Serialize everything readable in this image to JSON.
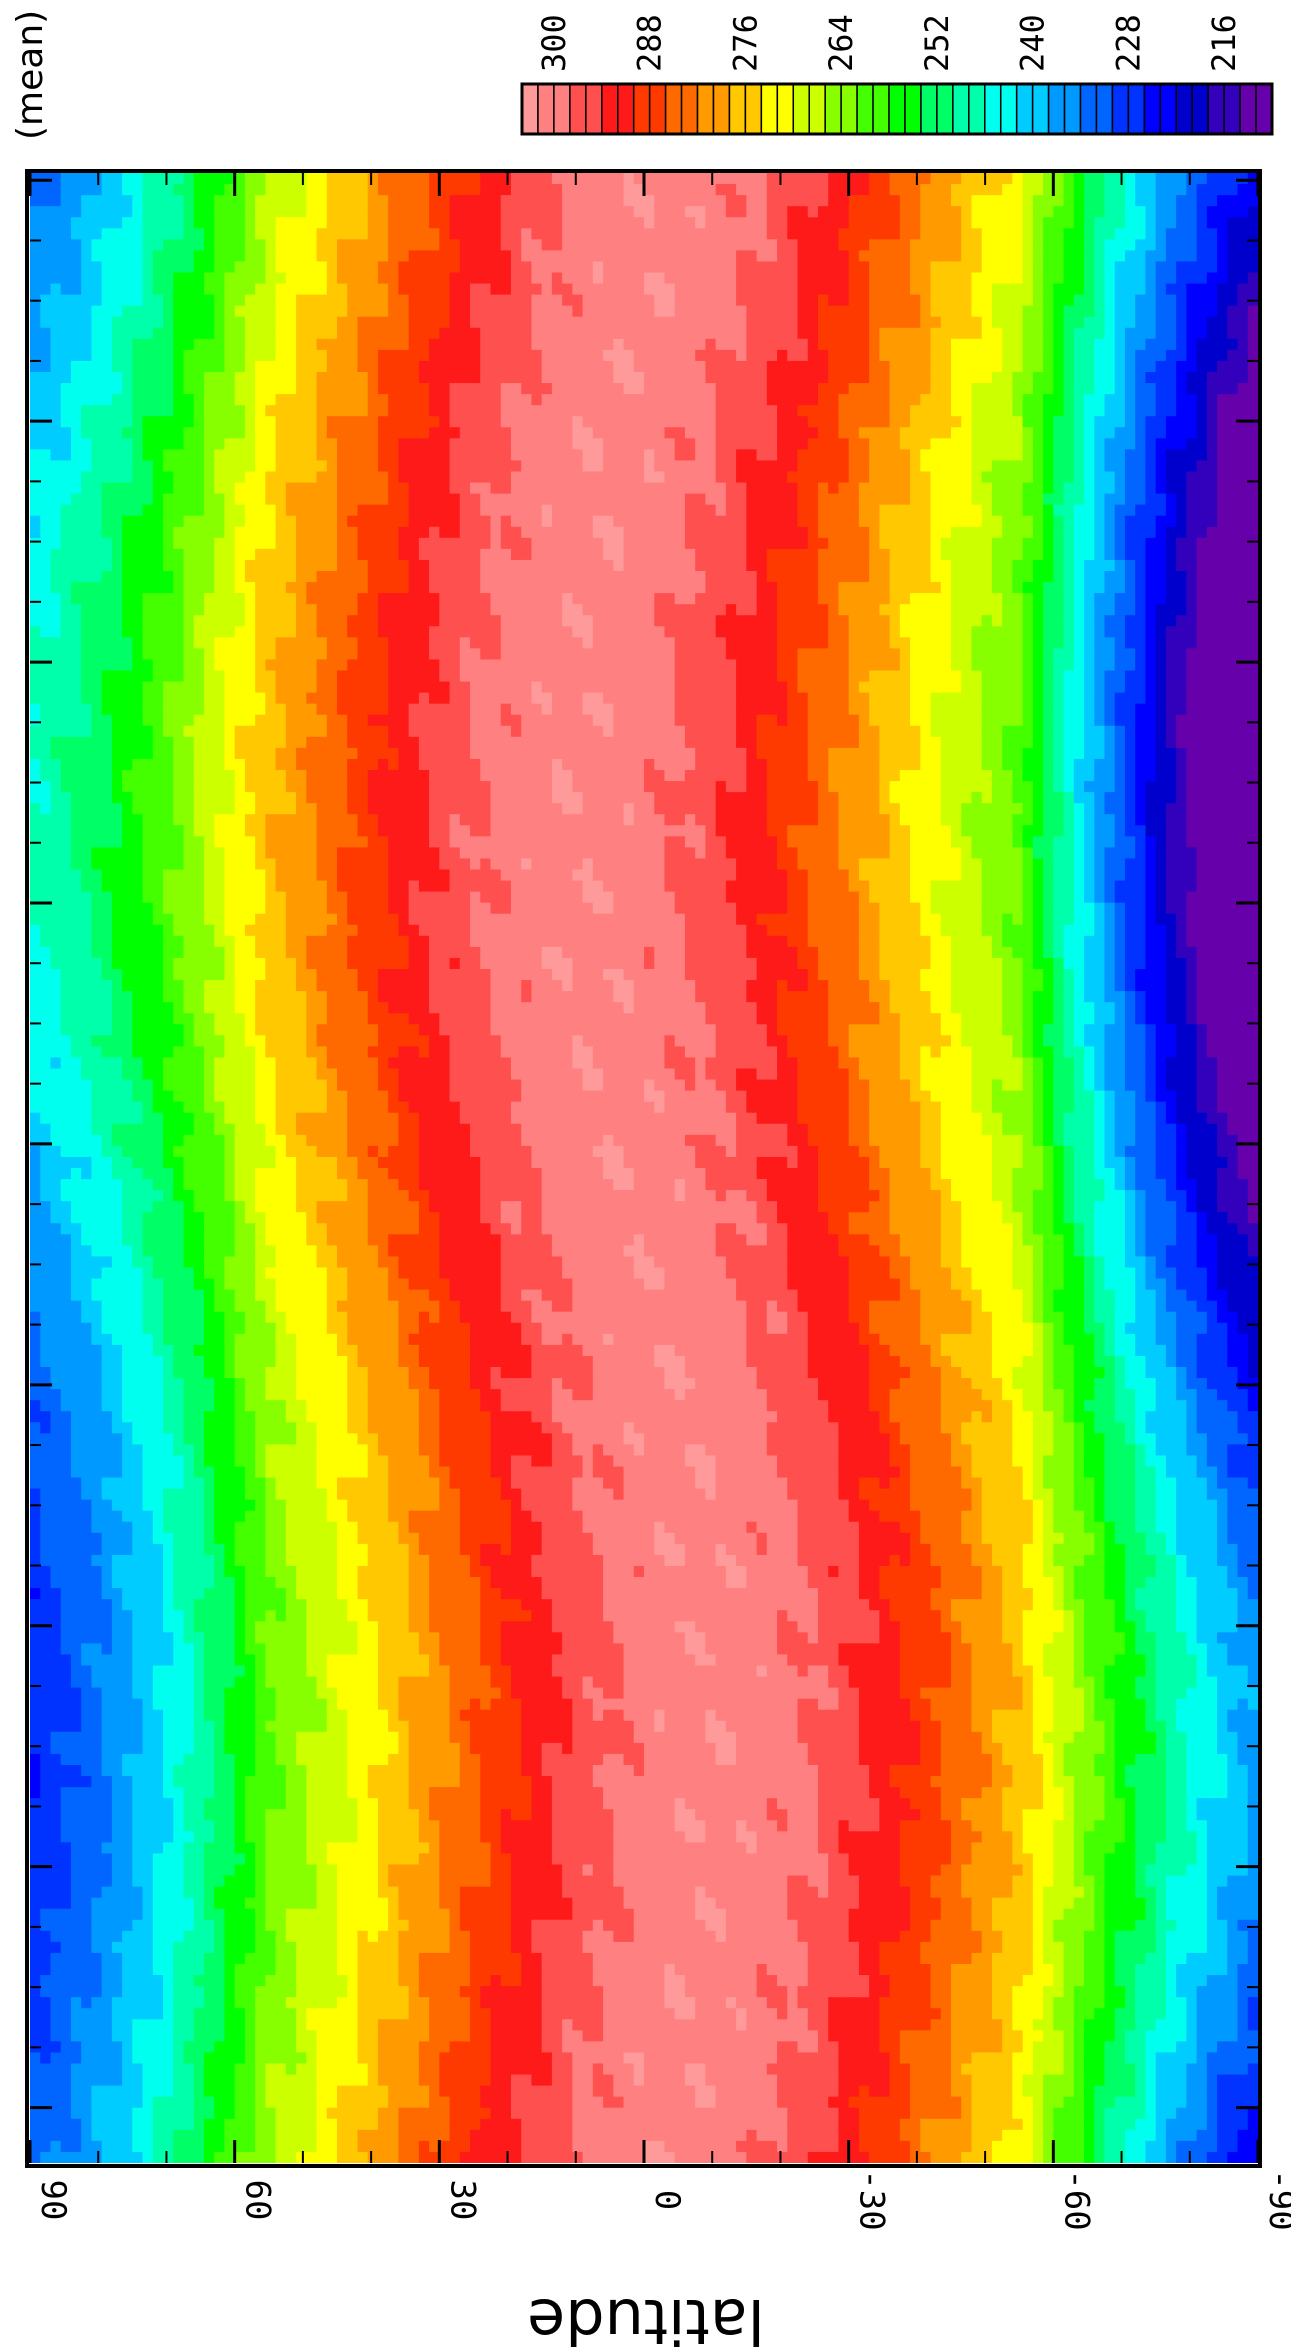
{
  "chart_data": {
    "type": "heatmap",
    "orientation": "rotated-90-clockwise",
    "ylabel": "latitude",
    "colorbar_title": "(mean) l",
    "latitude_range": [
      -90,
      90
    ],
    "latitude_ticks": [
      "90",
      "60",
      "30",
      "0",
      "-30",
      "-60",
      "-90"
    ],
    "latitude_tick_values": [
      90,
      60,
      30,
      0,
      -30,
      -60,
      -90
    ],
    "time_major_tick_count": 8,
    "time_minor_per_major": 4,
    "colorbar": {
      "min": 210,
      "max": 304,
      "step": 2,
      "labels": [
        "300",
        "288",
        "276",
        "264",
        "252",
        "240",
        "228",
        "216"
      ],
      "label_values": [
        300,
        288,
        276,
        264,
        252,
        240,
        228,
        216
      ],
      "stops": [
        {
          "value": 303,
          "color": "#ff9a9a"
        },
        {
          "value": 299,
          "color": "#ff8080"
        },
        {
          "value": 295,
          "color": "#ff5050"
        },
        {
          "value": 291,
          "color": "#ff1a1a"
        },
        {
          "value": 287,
          "color": "#ff3a00"
        },
        {
          "value": 283,
          "color": "#ff6a00"
        },
        {
          "value": 279,
          "color": "#ff9a00"
        },
        {
          "value": 275,
          "color": "#ffc800"
        },
        {
          "value": 271,
          "color": "#ffff00"
        },
        {
          "value": 267,
          "color": "#ccff00"
        },
        {
          "value": 263,
          "color": "#88ff00"
        },
        {
          "value": 259,
          "color": "#44ff00"
        },
        {
          "value": 255,
          "color": "#00ff00"
        },
        {
          "value": 251,
          "color": "#00ff66"
        },
        {
          "value": 247,
          "color": "#00ffaa"
        },
        {
          "value": 243,
          "color": "#00ffee"
        },
        {
          "value": 239,
          "color": "#00ccff"
        },
        {
          "value": 235,
          "color": "#0099ff"
        },
        {
          "value": 231,
          "color": "#0066ff"
        },
        {
          "value": 227,
          "color": "#0033ff"
        },
        {
          "value": 223,
          "color": "#0000ff"
        },
        {
          "value": 219,
          "color": "#0000cc"
        },
        {
          "value": 215,
          "color": "#3300bb"
        },
        {
          "value": 211,
          "color": "#6600aa"
        }
      ]
    }
  }
}
